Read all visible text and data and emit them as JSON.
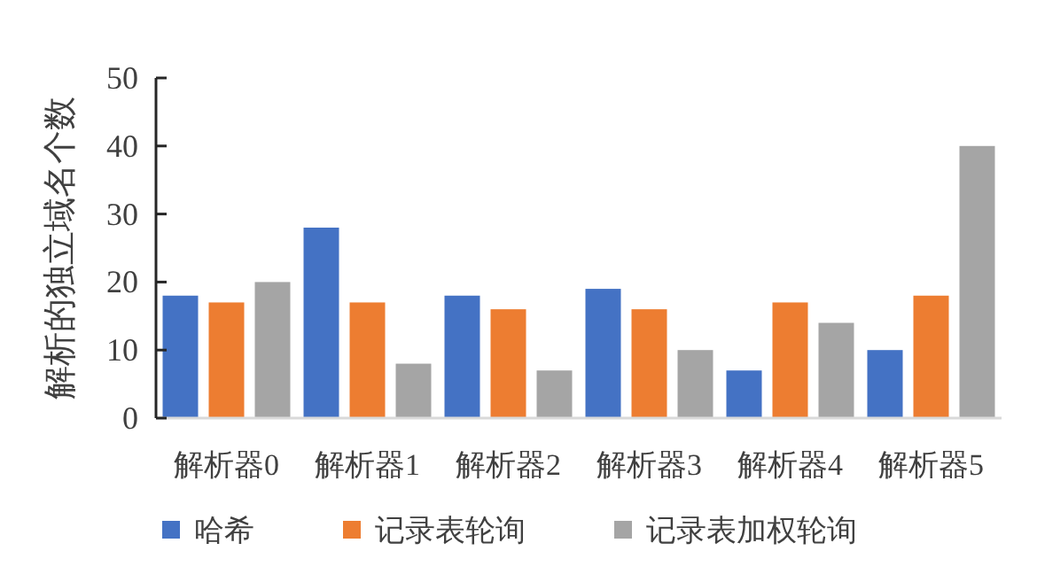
{
  "chart_data": {
    "type": "bar",
    "ylabel": "解析的独立域名个数",
    "categories": [
      "解析器0",
      "解析器1",
      "解析器2",
      "解析器3",
      "解析器4",
      "解析器5"
    ],
    "series": [
      {
        "name": "哈希",
        "color": "#4472c4",
        "values": [
          18,
          28,
          18,
          19,
          7,
          10
        ]
      },
      {
        "name": "记录表轮询",
        "color": "#ed7d31",
        "values": [
          17,
          17,
          16,
          16,
          17,
          18
        ]
      },
      {
        "name": "记录表加权轮询",
        "color": "#a5a5a5",
        "values": [
          20,
          8,
          7,
          10,
          14,
          40
        ]
      }
    ],
    "ylim": [
      0,
      50
    ],
    "yticks": [
      0,
      10,
      20,
      30,
      40,
      50
    ],
    "grid": false,
    "legend": "bottom"
  }
}
